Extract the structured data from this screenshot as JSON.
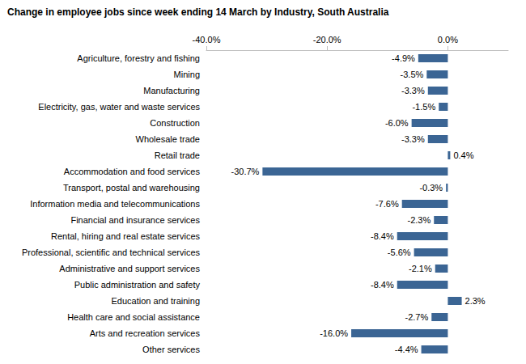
{
  "chart_data": {
    "type": "bar",
    "title": "Change in employee jobs since week ending 14 March by Industry, South Australia",
    "orientation": "horizontal",
    "categories": [
      "Agriculture, forestry and fishing",
      "Mining",
      "Manufacturing",
      "Electricity, gas, water and waste services",
      "Construction",
      "Wholesale trade",
      "Retail trade",
      "Accommodation and food services",
      "Transport, postal and warehousing",
      "Information media and telecommunications",
      "Financial and insurance services",
      "Rental, hiring and real estate services",
      "Professional, scientific and technical services",
      "Administrative and support services",
      "Public administration and safety",
      "Education and training",
      "Health care and social assistance",
      "Arts and recreation services",
      "Other services"
    ],
    "values": [
      -4.9,
      -3.5,
      -3.3,
      -1.5,
      -6.0,
      -3.3,
      0.4,
      -30.7,
      -0.3,
      -7.6,
      -2.3,
      -8.4,
      -5.6,
      -2.1,
      -8.4,
      2.3,
      -2.7,
      -16.0,
      -4.4
    ],
    "value_labels": [
      "-4.9%",
      "-3.5%",
      "-3.3%",
      "-1.5%",
      "-6.0%",
      "-3.3%",
      "0.4%",
      "-30.7%",
      "-0.3%",
      "-7.6%",
      "-2.3%",
      "-8.4%",
      "-5.6%",
      "-2.1%",
      "-8.4%",
      "2.3%",
      "-2.7%",
      "-16.0%",
      "-4.4%"
    ],
    "color": "#3b6594",
    "xlim": [
      -40,
      10
    ],
    "xticks": [
      {
        "value": -40,
        "label": "-40.0%"
      },
      {
        "value": -20,
        "label": "-20.0%"
      },
      {
        "value": 0,
        "label": "0.0%"
      }
    ],
    "data_labels": true,
    "grid": false
  }
}
